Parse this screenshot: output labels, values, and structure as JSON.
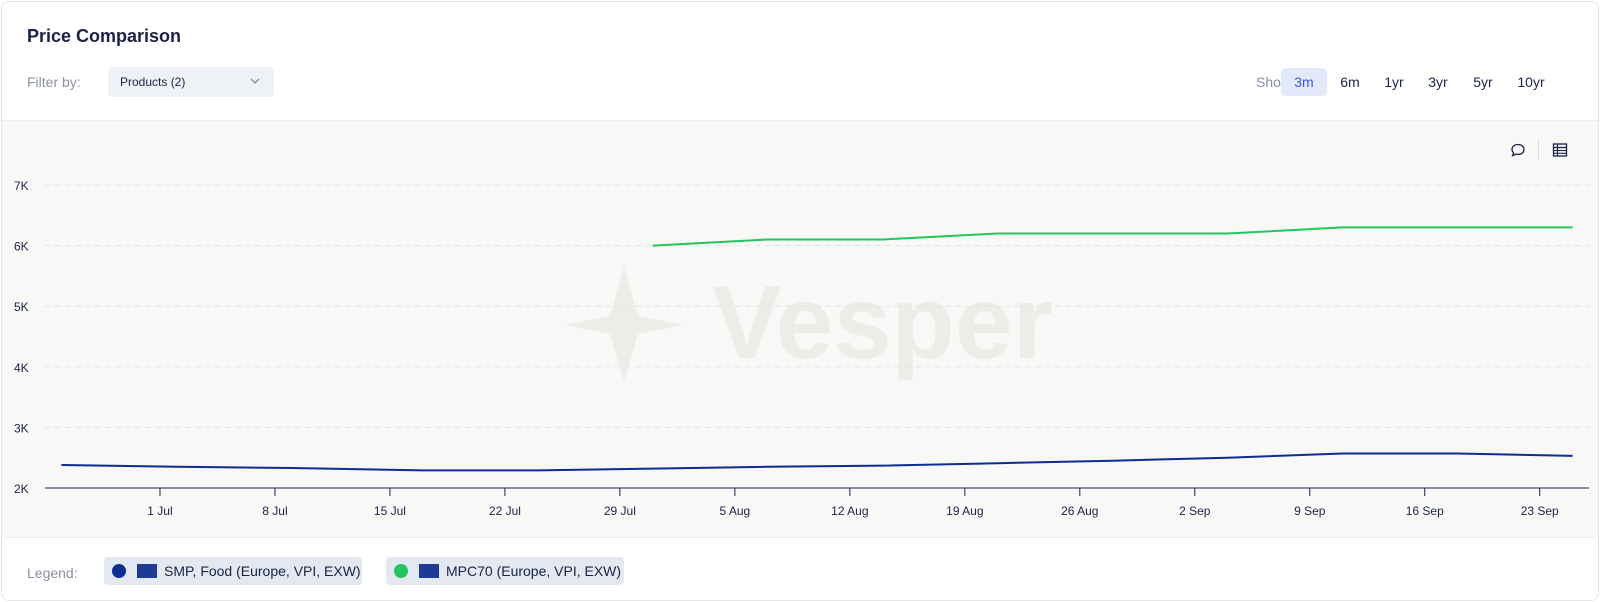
{
  "header": {
    "title": "Price Comparison"
  },
  "filter": {
    "label": "Filter by:",
    "value": "Products (2)"
  },
  "show": {
    "label": "Show:",
    "ranges": [
      "3m",
      "6m",
      "1yr",
      "3yr",
      "5yr",
      "10yr"
    ],
    "active": "3m"
  },
  "toolbar": {
    "comment_icon": "comment-icon",
    "table_icon": "table-icon"
  },
  "watermark": {
    "text": "Vesper"
  },
  "legend": {
    "label": "Legend:",
    "items": [
      {
        "name": "SMP, Food (Europe, VPI, EXW)",
        "color": "#0c2d91",
        "flag_icon": "eu-flag-icon"
      },
      {
        "name": "MPC70 (Europe, VPI, EXW)",
        "color": "#22c55e",
        "flag_icon": "eu-flag-icon"
      }
    ]
  },
  "chart_data": {
    "type": "line",
    "title": "Price Comparison",
    "xlabel": "",
    "ylabel": "",
    "x_ticks": [
      "1 Jul",
      "8 Jul",
      "15 Jul",
      "22 Jul",
      "29 Jul",
      "5 Aug",
      "12 Aug",
      "19 Aug",
      "26 Aug",
      "2 Sep",
      "9 Sep",
      "16 Sep",
      "23 Sep"
    ],
    "y_ticks": [
      "2K",
      "3K",
      "4K",
      "5K",
      "6K",
      "7K"
    ],
    "ylim": [
      2000,
      7000
    ],
    "xlim": [
      "2024-06-24",
      "2024-09-26"
    ],
    "grid": true,
    "legend_position": "bottom",
    "series": [
      {
        "name": "SMP, Food (Europe, VPI, EXW)",
        "color": "#0c2d91",
        "points": [
          {
            "x": "2024-06-25",
            "y": 2380
          },
          {
            "x": "2024-07-02",
            "y": 2350
          },
          {
            "x": "2024-07-09",
            "y": 2330
          },
          {
            "x": "2024-07-17",
            "y": 2290
          },
          {
            "x": "2024-07-24",
            "y": 2290
          },
          {
            "x": "2024-07-31",
            "y": 2320
          },
          {
            "x": "2024-08-07",
            "y": 2350
          },
          {
            "x": "2024-08-14",
            "y": 2370
          },
          {
            "x": "2024-08-21",
            "y": 2410
          },
          {
            "x": "2024-08-28",
            "y": 2450
          },
          {
            "x": "2024-09-04",
            "y": 2500
          },
          {
            "x": "2024-09-11",
            "y": 2570
          },
          {
            "x": "2024-09-18",
            "y": 2570
          },
          {
            "x": "2024-09-25",
            "y": 2530
          }
        ]
      },
      {
        "name": "MPC70 (Europe, VPI, EXW)",
        "color": "#22c55e",
        "points": [
          {
            "x": "2024-07-31",
            "y": 6000
          },
          {
            "x": "2024-08-07",
            "y": 6100
          },
          {
            "x": "2024-08-14",
            "y": 6100
          },
          {
            "x": "2024-08-21",
            "y": 6200
          },
          {
            "x": "2024-08-28",
            "y": 6200
          },
          {
            "x": "2024-09-04",
            "y": 6200
          },
          {
            "x": "2024-09-11",
            "y": 6300
          },
          {
            "x": "2024-09-18",
            "y": 6300
          },
          {
            "x": "2024-09-25",
            "y": 6300
          }
        ]
      }
    ]
  }
}
